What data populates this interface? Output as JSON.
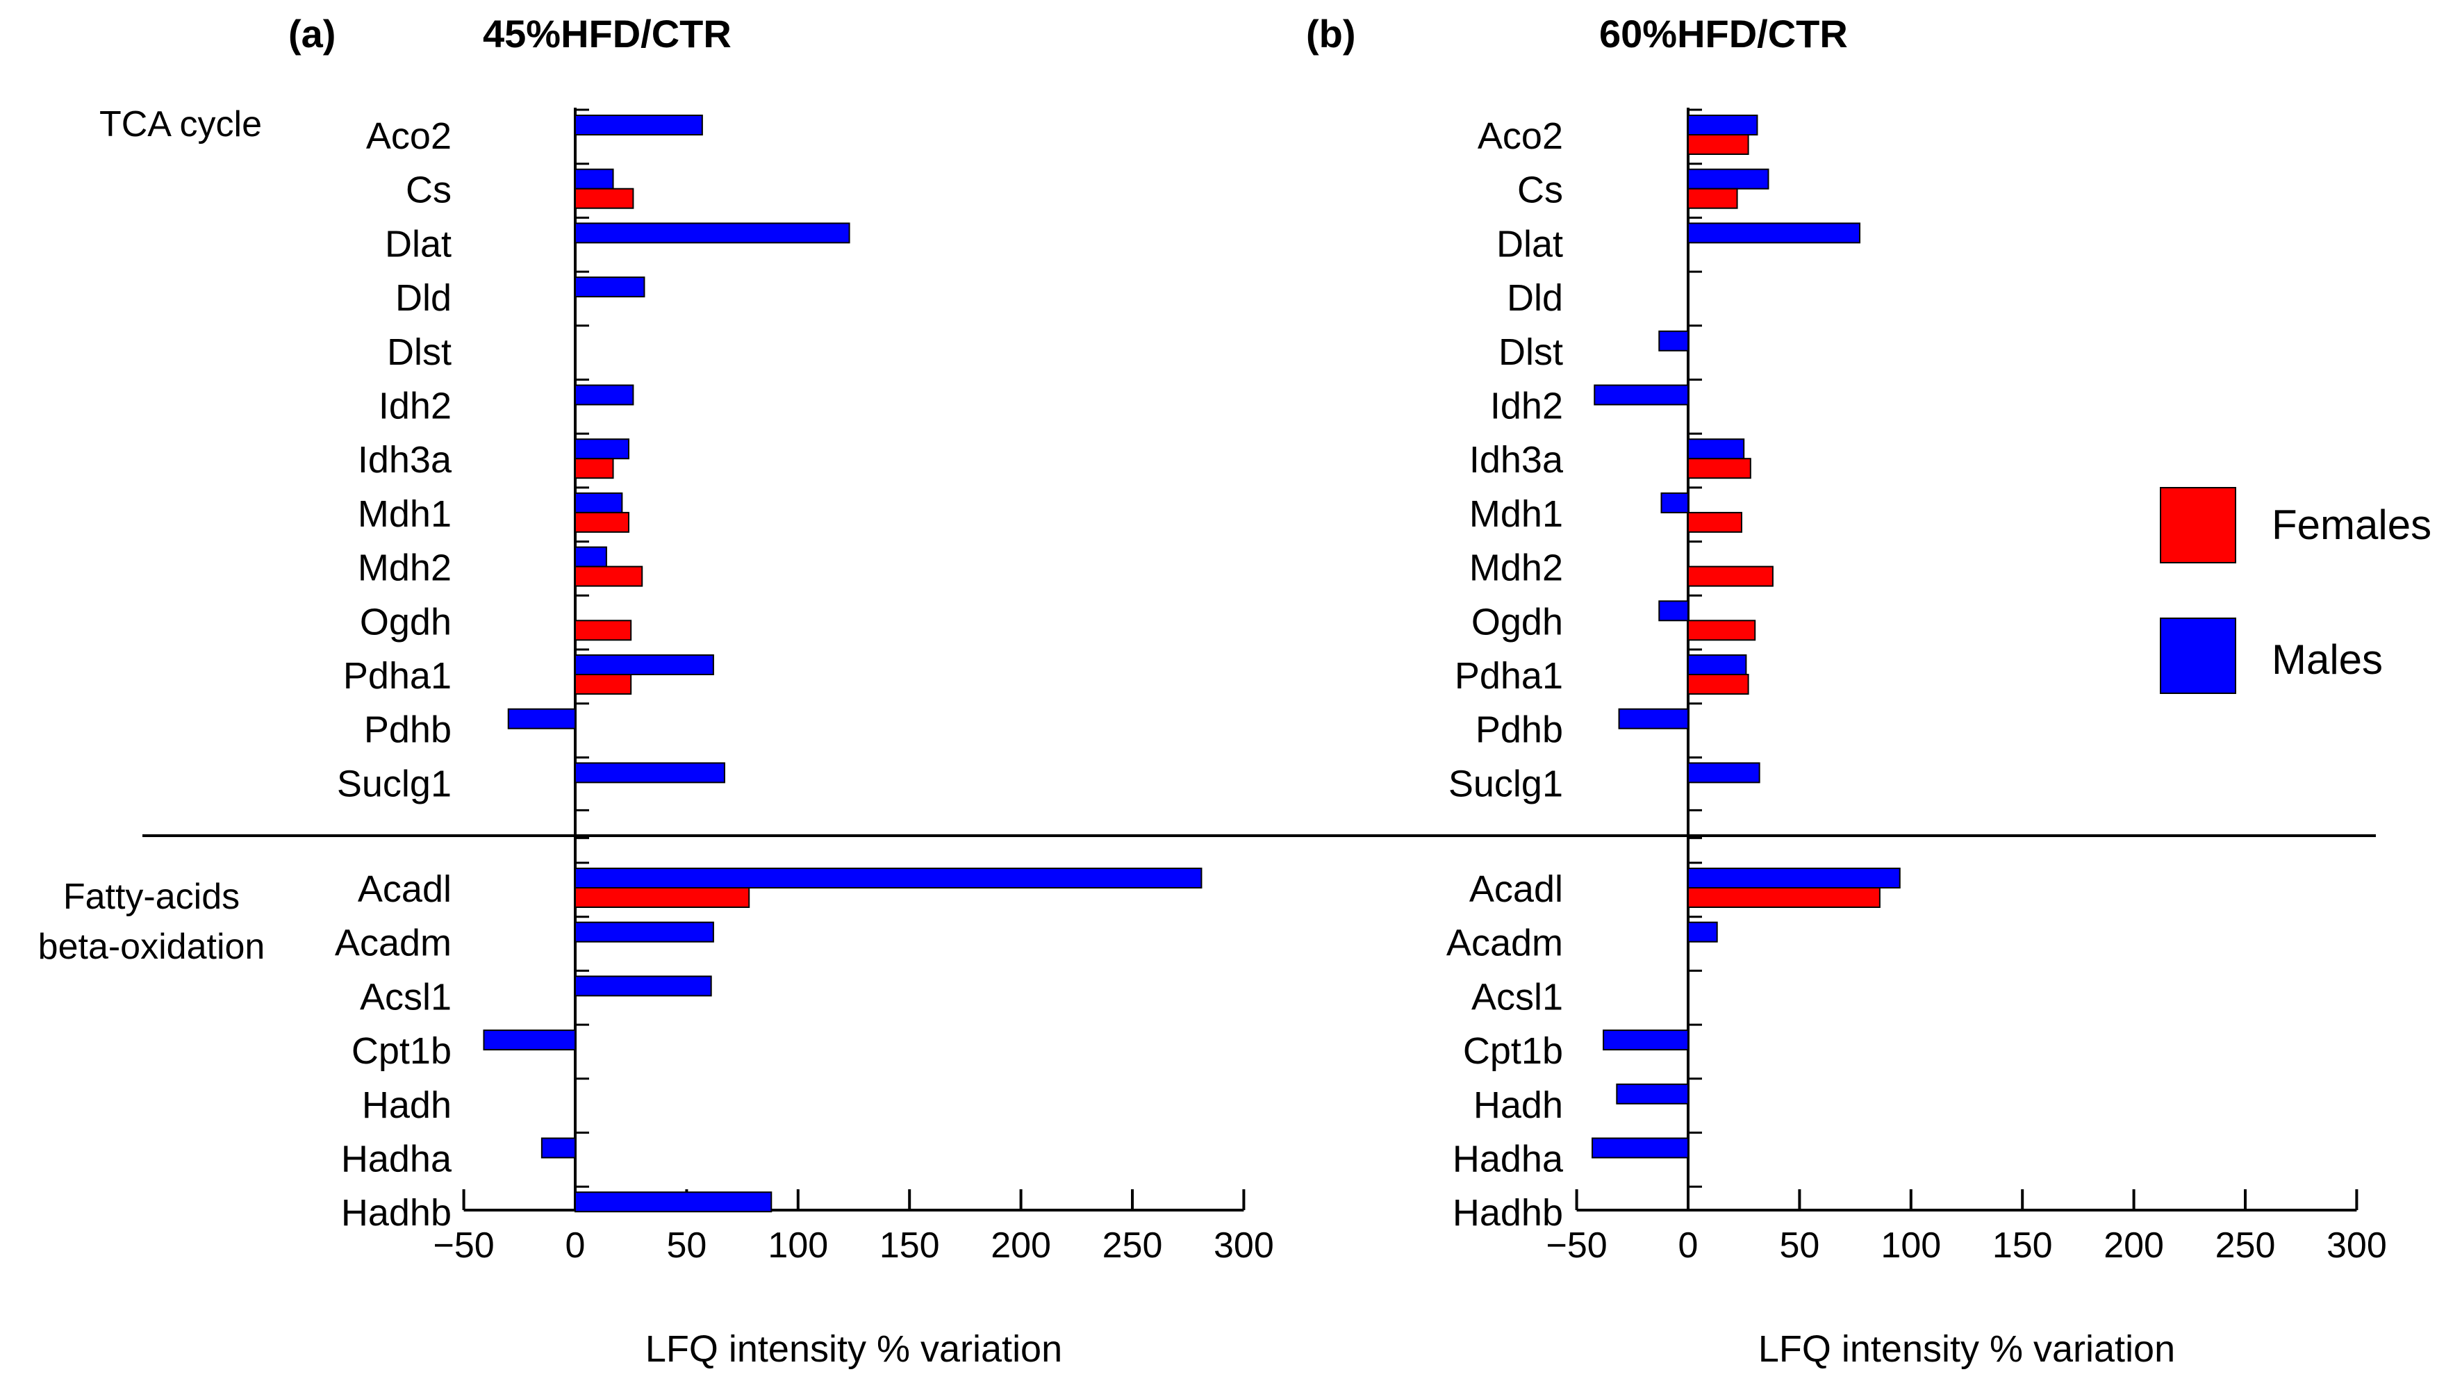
{
  "groups": [
    {
      "label": "TCA cycle",
      "lines": [
        "TCA cycle"
      ]
    },
    {
      "label": "Fatty-acids beta-oxidation",
      "lines": [
        "Fatty-acids",
        "beta-oxidation"
      ]
    }
  ],
  "legend": [
    {
      "label": "Females",
      "color": "#ff0000"
    },
    {
      "label": "Males",
      "color": "#0000ff"
    }
  ],
  "chart_data": [
    {
      "type": "bar",
      "orientation": "horizontal",
      "panel": "(a)",
      "title": "45%HFD/CTR",
      "xlabel": "LFQ intensity % variation",
      "xlim": [
        -50,
        300
      ],
      "xticks": [
        -50,
        0,
        50,
        100,
        150,
        200,
        250,
        300
      ],
      "xtick_labels": [
        "−50",
        "0",
        "50",
        "100",
        "150",
        "200",
        "250",
        "300"
      ],
      "categories": [
        "Aco2",
        "Cs",
        "Dlat",
        "Dld",
        "Dlst",
        "Idh2",
        "Idh3a",
        "Mdh1",
        "Mdh2",
        "Ogdh",
        "Pdha1",
        "Pdhb",
        "Suclg1",
        "Acadl",
        "Acadm",
        "Acsl1",
        "Cpt1b",
        "Hadh",
        "Hadha",
        "Hadhb"
      ],
      "category_groups": [
        0,
        0,
        0,
        0,
        0,
        0,
        0,
        0,
        0,
        0,
        0,
        0,
        0,
        1,
        1,
        1,
        1,
        1,
        1,
        1
      ],
      "series": [
        {
          "name": "Males",
          "color": "#0000ff",
          "values": [
            57,
            17,
            123,
            31,
            null,
            26,
            24,
            21,
            14,
            null,
            62,
            -30,
            67,
            281,
            62,
            61,
            -41,
            null,
            -15,
            88
          ]
        },
        {
          "name": "Females",
          "color": "#ff0000",
          "values": [
            null,
            26,
            null,
            null,
            null,
            null,
            17,
            24,
            30,
            25,
            25,
            null,
            null,
            78,
            null,
            null,
            null,
            null,
            null,
            null
          ]
        }
      ]
    },
    {
      "type": "bar",
      "orientation": "horizontal",
      "panel": "(b)",
      "title": "60%HFD/CTR",
      "xlabel": "LFQ intensity % variation",
      "xlim": [
        -50,
        300
      ],
      "xticks": [
        -50,
        0,
        50,
        100,
        150,
        200,
        250,
        300
      ],
      "xtick_labels": [
        "−50",
        "0",
        "50",
        "100",
        "150",
        "200",
        "250",
        "300"
      ],
      "categories": [
        "Aco2",
        "Cs",
        "Dlat",
        "Dld",
        "Dlst",
        "Idh2",
        "Idh3a",
        "Mdh1",
        "Mdh2",
        "Ogdh",
        "Pdha1",
        "Pdhb",
        "Suclg1",
        "Acadl",
        "Acadm",
        "Acsl1",
        "Cpt1b",
        "Hadh",
        "Hadha",
        "Hadhb"
      ],
      "category_groups": [
        0,
        0,
        0,
        0,
        0,
        0,
        0,
        0,
        0,
        0,
        0,
        0,
        0,
        1,
        1,
        1,
        1,
        1,
        1,
        1
      ],
      "series": [
        {
          "name": "Males",
          "color": "#0000ff",
          "values": [
            31,
            36,
            77,
            null,
            -13,
            -42,
            25,
            -12,
            null,
            -13,
            26,
            -31,
            32,
            95,
            13,
            null,
            -38,
            -32,
            -43,
            null
          ]
        },
        {
          "name": "Females",
          "color": "#ff0000",
          "values": [
            27,
            22,
            null,
            null,
            null,
            null,
            28,
            24,
            38,
            30,
            27,
            null,
            null,
            86,
            null,
            null,
            null,
            null,
            null,
            null
          ]
        }
      ]
    }
  ]
}
